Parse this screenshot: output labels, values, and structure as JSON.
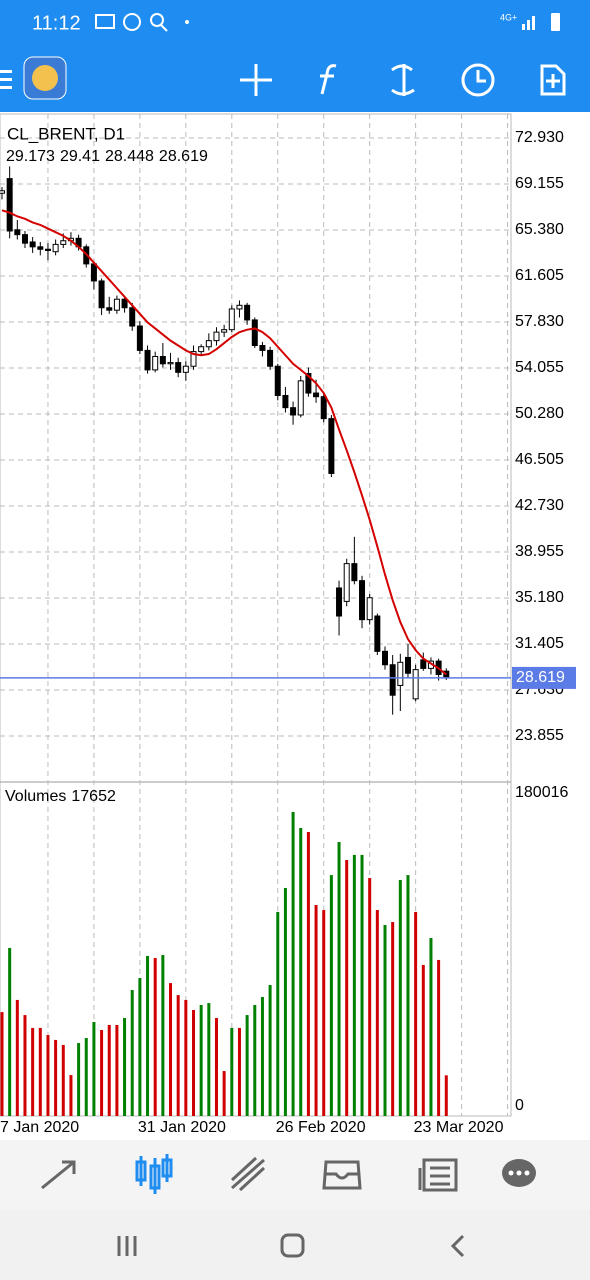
{
  "status_bar": {
    "time": "11:12",
    "network": "4G+"
  },
  "chart_data": [
    {
      "type": "candlestick",
      "title": "CL_BRENT, D1",
      "categories": [
        "7 Jan 2020",
        null,
        null,
        null,
        null,
        null,
        null,
        null,
        null,
        null,
        null,
        null,
        null,
        null,
        null,
        null,
        null,
        null,
        "31 Jan 2020",
        null,
        null,
        null,
        null,
        null,
        null,
        null,
        null,
        null,
        null,
        null,
        null,
        null,
        null,
        null,
        null,
        null,
        "26 Feb 2020",
        null,
        null,
        null,
        null,
        null,
        null,
        null,
        null,
        null,
        null,
        null,
        null,
        null,
        null,
        null,
        null,
        null,
        "23 Mar 2020",
        null,
        null,
        null,
        null
      ],
      "open": [
        68.4,
        69.6,
        65.4,
        65.0,
        64.4,
        64.0,
        63.8,
        63.6,
        64.2,
        64.5,
        64.7,
        64.0,
        62.6,
        61.2,
        59.0,
        58.8,
        59.7,
        59.0,
        57.5,
        55.5,
        53.9,
        55.0,
        54.4,
        54.5,
        53.7,
        54.2,
        55.4,
        55.8,
        56.3,
        57.0,
        57.2,
        58.9,
        59.2,
        58.0,
        55.9,
        55.5,
        54.2,
        51.8,
        50.8,
        50.2,
        53.6,
        52.0,
        51.7,
        49.9,
        36.0,
        34.9,
        38.0,
        36.6,
        33.4,
        33.7,
        30.8,
        29.7,
        28.0,
        30.3,
        26.9,
        30.1,
        29.4,
        30.0,
        29.173
      ],
      "high": [
        68.9,
        70.6,
        66.2,
        65.3,
        64.8,
        64.4,
        64.3,
        64.6,
        65.1,
        65.2,
        65.0,
        64.2,
        62.8,
        61.4,
        59.9,
        60.0,
        60.0,
        59.4,
        57.9,
        55.9,
        55.4,
        56.1,
        55.3,
        54.9,
        54.6,
        55.9,
        56.0,
        56.9,
        57.4,
        57.6,
        59.2,
        59.6,
        59.4,
        58.2,
        56.2,
        55.8,
        54.4,
        52.5,
        51.3,
        53.4,
        54.1,
        53.1,
        52.0,
        50.2,
        36.6,
        38.4,
        40.2,
        37.0,
        35.5,
        33.9,
        31.2,
        30.5,
        30.6,
        31.4,
        29.7,
        30.7,
        30.3,
        30.2,
        29.41
      ],
      "low": [
        67.9,
        64.7,
        64.6,
        63.9,
        63.5,
        63.3,
        62.9,
        63.3,
        63.9,
        64.1,
        63.7,
        62.3,
        60.5,
        58.4,
        58.5,
        58.5,
        58.6,
        57.1,
        55.2,
        53.6,
        53.7,
        54.1,
        53.9,
        53.3,
        53.0,
        53.9,
        55.1,
        55.5,
        55.9,
        56.6,
        57.0,
        58.2,
        57.6,
        55.7,
        55.0,
        53.9,
        51.4,
        50.4,
        49.4,
        50.0,
        51.7,
        51.2,
        49.6,
        45.1,
        32.1,
        34.5,
        36.3,
        32.7,
        33.0,
        30.5,
        29.3,
        25.6,
        25.9,
        28.6,
        26.7,
        29.2,
        28.9,
        28.4,
        28.448
      ],
      "close": [
        68.6,
        65.3,
        65.0,
        64.3,
        64.0,
        63.8,
        63.7,
        64.2,
        64.5,
        64.7,
        64.0,
        62.6,
        61.2,
        59.0,
        58.8,
        59.7,
        59.0,
        57.5,
        55.5,
        53.9,
        55.0,
        54.4,
        54.5,
        53.7,
        54.2,
        55.4,
        55.8,
        56.3,
        57.0,
        57.2,
        58.9,
        59.2,
        58.0,
        55.9,
        55.5,
        54.2,
        51.8,
        50.8,
        50.2,
        53.0,
        52.0,
        51.7,
        49.9,
        45.4,
        33.7,
        38.0,
        36.6,
        33.4,
        35.2,
        30.8,
        29.7,
        27.2,
        29.9,
        29.0,
        29.3,
        29.4,
        30.0,
        28.9,
        28.619
      ],
      "up_color": "#ffffff",
      "down_color": "#000000",
      "ma": {
        "color": "#d40000",
        "values": [
          67.0,
          66.8,
          66.5,
          66.3,
          66.0,
          65.8,
          65.5,
          65.2,
          64.9,
          64.5,
          64.0,
          63.4,
          62.7,
          62.0,
          61.3,
          60.6,
          59.9,
          59.2,
          58.5,
          57.8,
          57.3,
          56.8,
          56.3,
          55.9,
          55.5,
          55.2,
          55.1,
          55.2,
          55.6,
          56.1,
          56.6,
          57.0,
          57.2,
          57.3,
          57.0,
          56.5,
          55.8,
          55.1,
          54.4,
          53.9,
          53.4,
          52.8,
          52.0,
          50.8,
          49.0,
          47.3,
          45.5,
          43.6,
          41.6,
          39.4,
          37.1,
          35.0,
          33.2,
          31.8,
          30.9,
          30.2,
          29.8,
          29.4,
          28.9
        ]
      },
      "price_line_color": "#5b7be6",
      "ylim": [
        20.24,
        74.82
      ],
      "yticks": [
        {
          "value": 72.93,
          "label": "72.930"
        },
        69.155,
        {
          "value": 65.38,
          "label": "65.380"
        },
        61.605,
        {
          "value": 57.83,
          "label": "57.830"
        },
        54.055,
        {
          "value": 50.28,
          "label": "50.280"
        },
        46.505,
        {
          "value": 42.73,
          "label": "42.730"
        },
        38.955,
        {
          "value": 35.18,
          "label": "35.180"
        },
        31.405,
        {
          "value": 27.63,
          "label": "27.630"
        },
        23.855
      ],
      "grid": true
    },
    {
      "type": "bar",
      "title": "Volumes",
      "values": [
        54000,
        90900,
        61000,
        52300,
        44900,
        44900,
        40800,
        38000,
        35100,
        17800,
        36200,
        39100,
        48300,
        43700,
        46600,
        46600,
        50600,
        66700,
        73600,
        86300,
        85100,
        86800,
        70700,
        63800,
        61000,
        55200,
        58100,
        59200,
        50600,
        20100,
        44900,
        44900,
        52300,
        58100,
        62700,
        69600,
        111600,
        125400,
        169100,
        159900,
        157600,
        115600,
        112700,
        132800,
        151800,
        141500,
        144400,
        144400,
        131100,
        112700,
        104100,
        105800,
        130000,
        132800,
        111600,
        81100,
        96600,
        84000,
        17652
      ],
      "colors": [
        "#d00000",
        "#008000",
        "#d00000",
        "#d00000",
        "#d00000",
        "#d00000",
        "#d00000",
        "#d00000",
        "#d00000",
        "#d00000",
        "#008000",
        "#008000",
        "#008000",
        "#d00000",
        "#d00000",
        "#d00000",
        "#008000",
        "#008000",
        "#008000",
        "#008000",
        "#d00000",
        "#008000",
        "#d00000",
        "#d00000",
        "#d00000",
        "#d00000",
        "#008000",
        "#008000",
        "#d00000",
        "#d00000",
        "#008000",
        "#d00000",
        "#008000",
        "#008000",
        "#008000",
        "#008000",
        "#008000",
        "#008000",
        "#008000",
        "#008000",
        "#d00000",
        "#d00000",
        "#d00000",
        "#008000",
        "#008000",
        "#d00000",
        "#008000",
        "#008000",
        "#d00000",
        "#d00000",
        "#008000",
        "#d00000",
        "#008000",
        "#008000",
        "#d00000",
        "#d00000",
        "#008000",
        "#d00000",
        "#d00000"
      ],
      "ylim": [
        0,
        180016
      ],
      "yticks": [
        0,
        180016
      ]
    }
  ]
}
